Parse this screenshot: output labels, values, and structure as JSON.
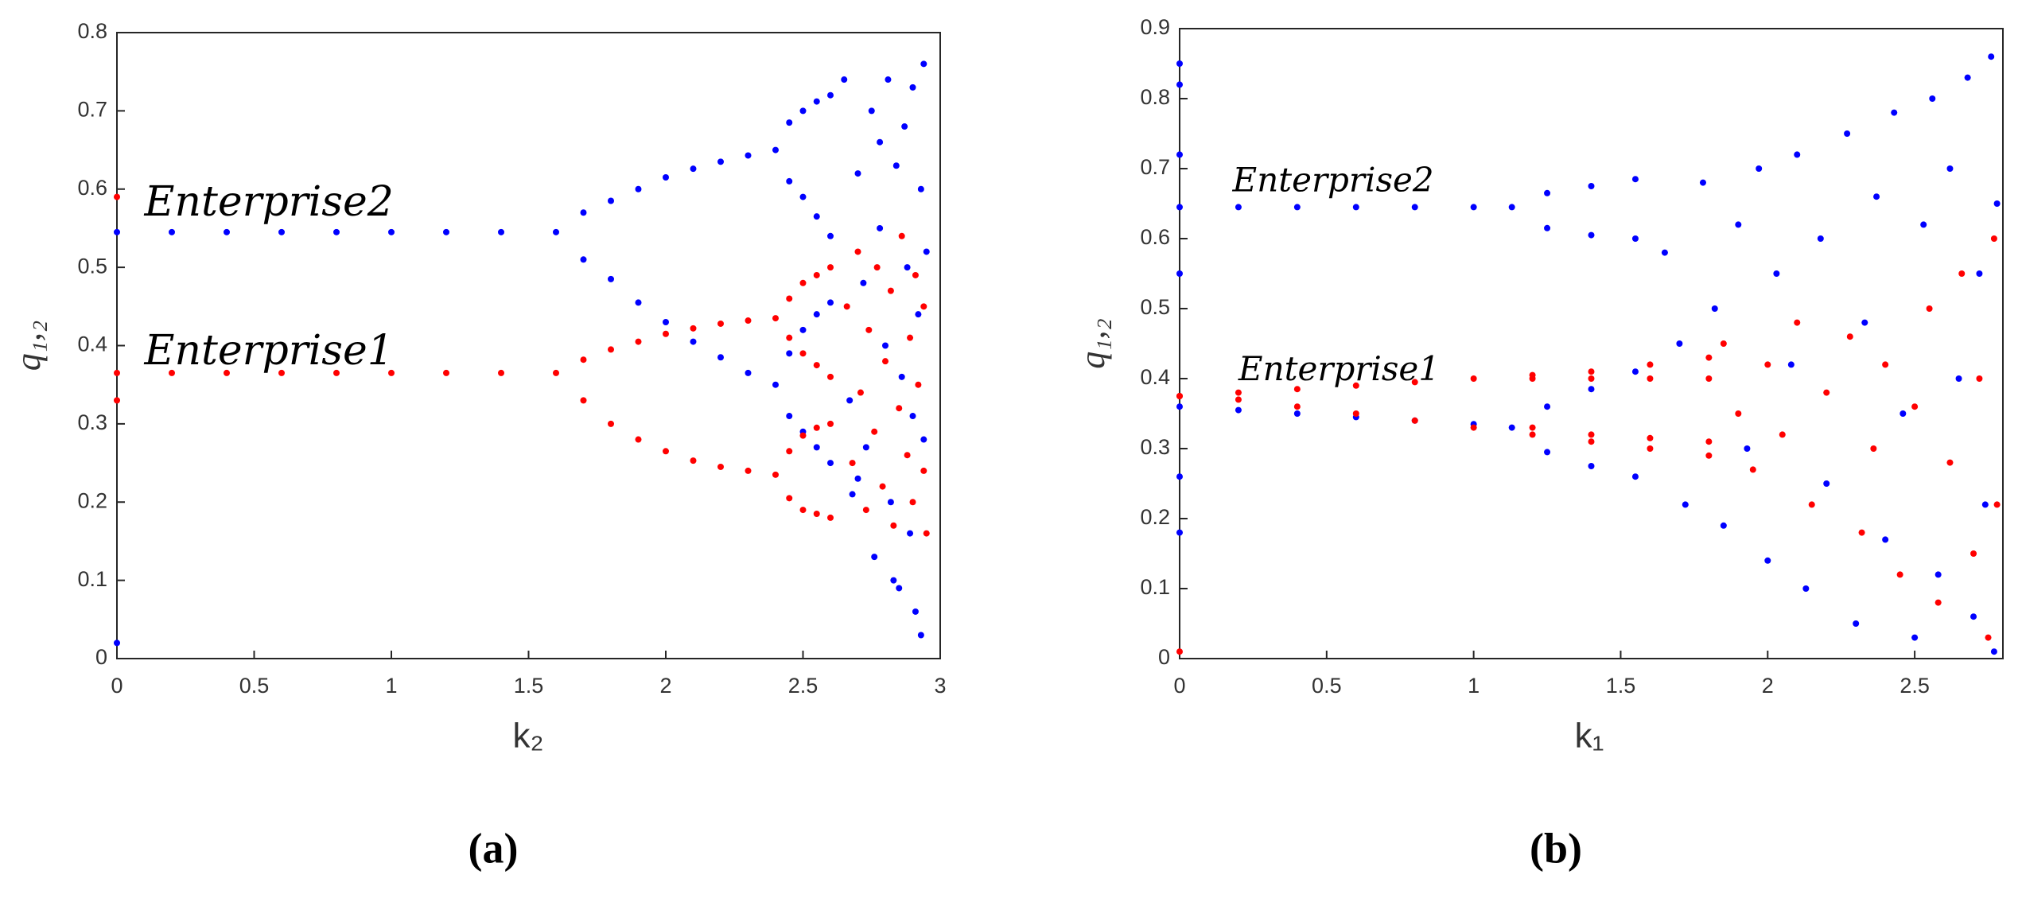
{
  "chart_data": [
    {
      "type": "scatter",
      "panel_label": "(a)",
      "xlabel": "k₂",
      "ylabel": "q₁,₂",
      "xlim": [
        0,
        3
      ],
      "ylim": [
        0,
        0.8
      ],
      "xticks": [
        0,
        0.5,
        1,
        1.5,
        2,
        2.5,
        3
      ],
      "yticks": [
        0,
        0.1,
        0.2,
        0.3,
        0.4,
        0.5,
        0.6,
        0.7,
        0.8
      ],
      "series": [
        {
          "name": "Enterprise2",
          "color": "#0000ff",
          "x": [
            0,
            0.2,
            0.4,
            0.6,
            0.8,
            1.0,
            1.2,
            1.4,
            1.6,
            1.7,
            1.8,
            1.9,
            2.0,
            2.1,
            2.2,
            2.3,
            2.4,
            1.7,
            1.8,
            1.9,
            2.0,
            2.1,
            2.2,
            2.3,
            2.4,
            2.45,
            2.5,
            2.55,
            2.6,
            2.45,
            2.5,
            2.55,
            2.6,
            2.45,
            2.5,
            2.55,
            2.6,
            2.45,
            2.5,
            2.55,
            2.6,
            2.65,
            2.67,
            2.68,
            2.7,
            2.72,
            2.73,
            2.75,
            2.76,
            2.78,
            2.8,
            2.81,
            2.82,
            2.84,
            2.85,
            2.86,
            2.87,
            2.88,
            2.89,
            2.9,
            2.91,
            2.92,
            2.93,
            2.93,
            2.94,
            2.94,
            2.7,
            2.78,
            2.83,
            2.9,
            2.95,
            0
          ],
          "y": [
            0.545,
            0.545,
            0.545,
            0.545,
            0.545,
            0.545,
            0.545,
            0.545,
            0.545,
            0.57,
            0.585,
            0.6,
            0.615,
            0.626,
            0.635,
            0.643,
            0.65,
            0.51,
            0.485,
            0.455,
            0.43,
            0.405,
            0.385,
            0.365,
            0.35,
            0.685,
            0.7,
            0.712,
            0.72,
            0.61,
            0.59,
            0.565,
            0.54,
            0.31,
            0.29,
            0.27,
            0.25,
            0.39,
            0.42,
            0.44,
            0.455,
            0.74,
            0.33,
            0.21,
            0.62,
            0.48,
            0.27,
            0.7,
            0.13,
            0.55,
            0.4,
            0.74,
            0.2,
            0.63,
            0.09,
            0.36,
            0.68,
            0.5,
            0.16,
            0.73,
            0.06,
            0.44,
            0.6,
            0.03,
            0.76,
            0.28,
            0.23,
            0.66,
            0.1,
            0.31,
            0.52,
            0.02
          ]
        },
        {
          "name": "Enterprise1",
          "color": "#ff0000",
          "x": [
            0,
            0.2,
            0.4,
            0.6,
            0.8,
            1.0,
            1.2,
            1.4,
            1.6,
            1.7,
            1.8,
            1.9,
            2.0,
            2.1,
            2.2,
            2.3,
            2.4,
            1.7,
            1.8,
            1.9,
            2.0,
            2.1,
            2.2,
            2.3,
            2.4,
            2.45,
            2.5,
            2.55,
            2.6,
            2.45,
            2.5,
            2.55,
            2.6,
            2.45,
            2.5,
            2.55,
            2.6,
            2.45,
            2.5,
            2.55,
            2.6,
            2.66,
            2.68,
            2.7,
            2.71,
            2.73,
            2.74,
            2.76,
            2.77,
            2.79,
            2.8,
            2.82,
            2.83,
            2.85,
            2.86,
            2.88,
            2.89,
            2.9,
            2.91,
            2.92,
            2.94,
            2.94,
            2.95,
            0,
            0
          ],
          "y": [
            0.365,
            0.365,
            0.365,
            0.365,
            0.365,
            0.365,
            0.365,
            0.365,
            0.365,
            0.382,
            0.395,
            0.405,
            0.415,
            0.422,
            0.428,
            0.432,
            0.435,
            0.33,
            0.3,
            0.28,
            0.265,
            0.253,
            0.245,
            0.24,
            0.235,
            0.46,
            0.48,
            0.49,
            0.5,
            0.41,
            0.39,
            0.375,
            0.36,
            0.265,
            0.285,
            0.295,
            0.3,
            0.205,
            0.19,
            0.185,
            0.18,
            0.45,
            0.25,
            0.52,
            0.34,
            0.19,
            0.42,
            0.29,
            0.5,
            0.22,
            0.38,
            0.47,
            0.17,
            0.32,
            0.54,
            0.26,
            0.41,
            0.2,
            0.49,
            0.35,
            0.24,
            0.45,
            0.16,
            0.59,
            0.33
          ]
        }
      ]
    },
    {
      "type": "scatter",
      "panel_label": "(b)",
      "xlabel": "k₁",
      "ylabel": "q₁,₂",
      "xlim": [
        0,
        2.8
      ],
      "ylim": [
        0,
        0.9
      ],
      "xticks": [
        0,
        0.5,
        1,
        1.5,
        2,
        2.5
      ],
      "yticks": [
        0,
        0.1,
        0.2,
        0.3,
        0.4,
        0.5,
        0.6,
        0.7,
        0.8,
        0.9
      ],
      "series": [
        {
          "name": "Enterprise2",
          "color": "#0000ff",
          "x": [
            0,
            0.2,
            0.4,
            0.6,
            0.8,
            1.0,
            1.13,
            0,
            0.2,
            0.4,
            0.6,
            0.8,
            1.0,
            1.13,
            1.25,
            1.4,
            1.55,
            1.25,
            1.4,
            1.55,
            1.25,
            1.4,
            1.55,
            1.25,
            1.4,
            1.55,
            0,
            0,
            0,
            0,
            0,
            0,
            1.65,
            1.7,
            1.72,
            1.78,
            1.82,
            1.85,
            1.9,
            1.93,
            1.97,
            2.0,
            2.03,
            2.08,
            2.1,
            2.13,
            2.18,
            2.2,
            2.27,
            2.3,
            2.33,
            2.37,
            2.4,
            2.43,
            2.46,
            2.5,
            2.53,
            2.56,
            2.58,
            2.62,
            2.65,
            2.68,
            2.7,
            2.72,
            2.74,
            2.76,
            2.77,
            2.78
          ],
          "y": [
            0.645,
            0.645,
            0.645,
            0.645,
            0.645,
            0.645,
            0.645,
            0.36,
            0.355,
            0.35,
            0.345,
            0.34,
            0.335,
            0.33,
            0.665,
            0.675,
            0.685,
            0.615,
            0.605,
            0.6,
            0.36,
            0.385,
            0.41,
            0.295,
            0.275,
            0.26,
            0.85,
            0.82,
            0.72,
            0.55,
            0.26,
            0.18,
            0.58,
            0.45,
            0.22,
            0.68,
            0.5,
            0.19,
            0.62,
            0.3,
            0.7,
            0.14,
            0.55,
            0.42,
            0.72,
            0.1,
            0.6,
            0.25,
            0.75,
            0.05,
            0.48,
            0.66,
            0.17,
            0.78,
            0.35,
            0.03,
            0.62,
            0.8,
            0.12,
            0.7,
            0.4,
            0.83,
            0.06,
            0.55,
            0.22,
            0.86,
            0.01,
            0.65
          ]
        },
        {
          "name": "Enterprise1",
          "color": "#ff0000",
          "x": [
            0,
            0.2,
            0.4,
            0.6,
            0.8,
            1.0,
            0,
            0.2,
            0.4,
            0.6,
            0.8,
            1.0,
            1.2,
            1.4,
            1.6,
            1.8,
            1.2,
            1.4,
            1.6,
            1.8,
            1.2,
            1.4,
            1.6,
            1.8,
            1.2,
            1.4,
            1.6,
            1.8,
            0,
            1.85,
            1.9,
            1.95,
            2.0,
            2.05,
            2.1,
            2.15,
            2.2,
            2.28,
            2.32,
            2.36,
            2.4,
            2.45,
            2.5,
            2.55,
            2.58,
            2.62,
            2.66,
            2.7,
            2.72,
            2.75,
            2.77,
            2.78
          ],
          "y": [
            0.375,
            0.38,
            0.385,
            0.39,
            0.395,
            0.4,
            0.375,
            0.37,
            0.36,
            0.35,
            0.34,
            0.33,
            0.405,
            0.41,
            0.42,
            0.43,
            0.4,
            0.4,
            0.4,
            0.4,
            0.32,
            0.31,
            0.3,
            0.29,
            0.33,
            0.32,
            0.315,
            0.31,
            0.01,
            0.45,
            0.35,
            0.27,
            0.42,
            0.32,
            0.48,
            0.22,
            0.38,
            0.46,
            0.18,
            0.3,
            0.42,
            0.12,
            0.36,
            0.5,
            0.08,
            0.28,
            0.55,
            0.15,
            0.4,
            0.03,
            0.6,
            0.22
          ]
        }
      ]
    }
  ]
}
